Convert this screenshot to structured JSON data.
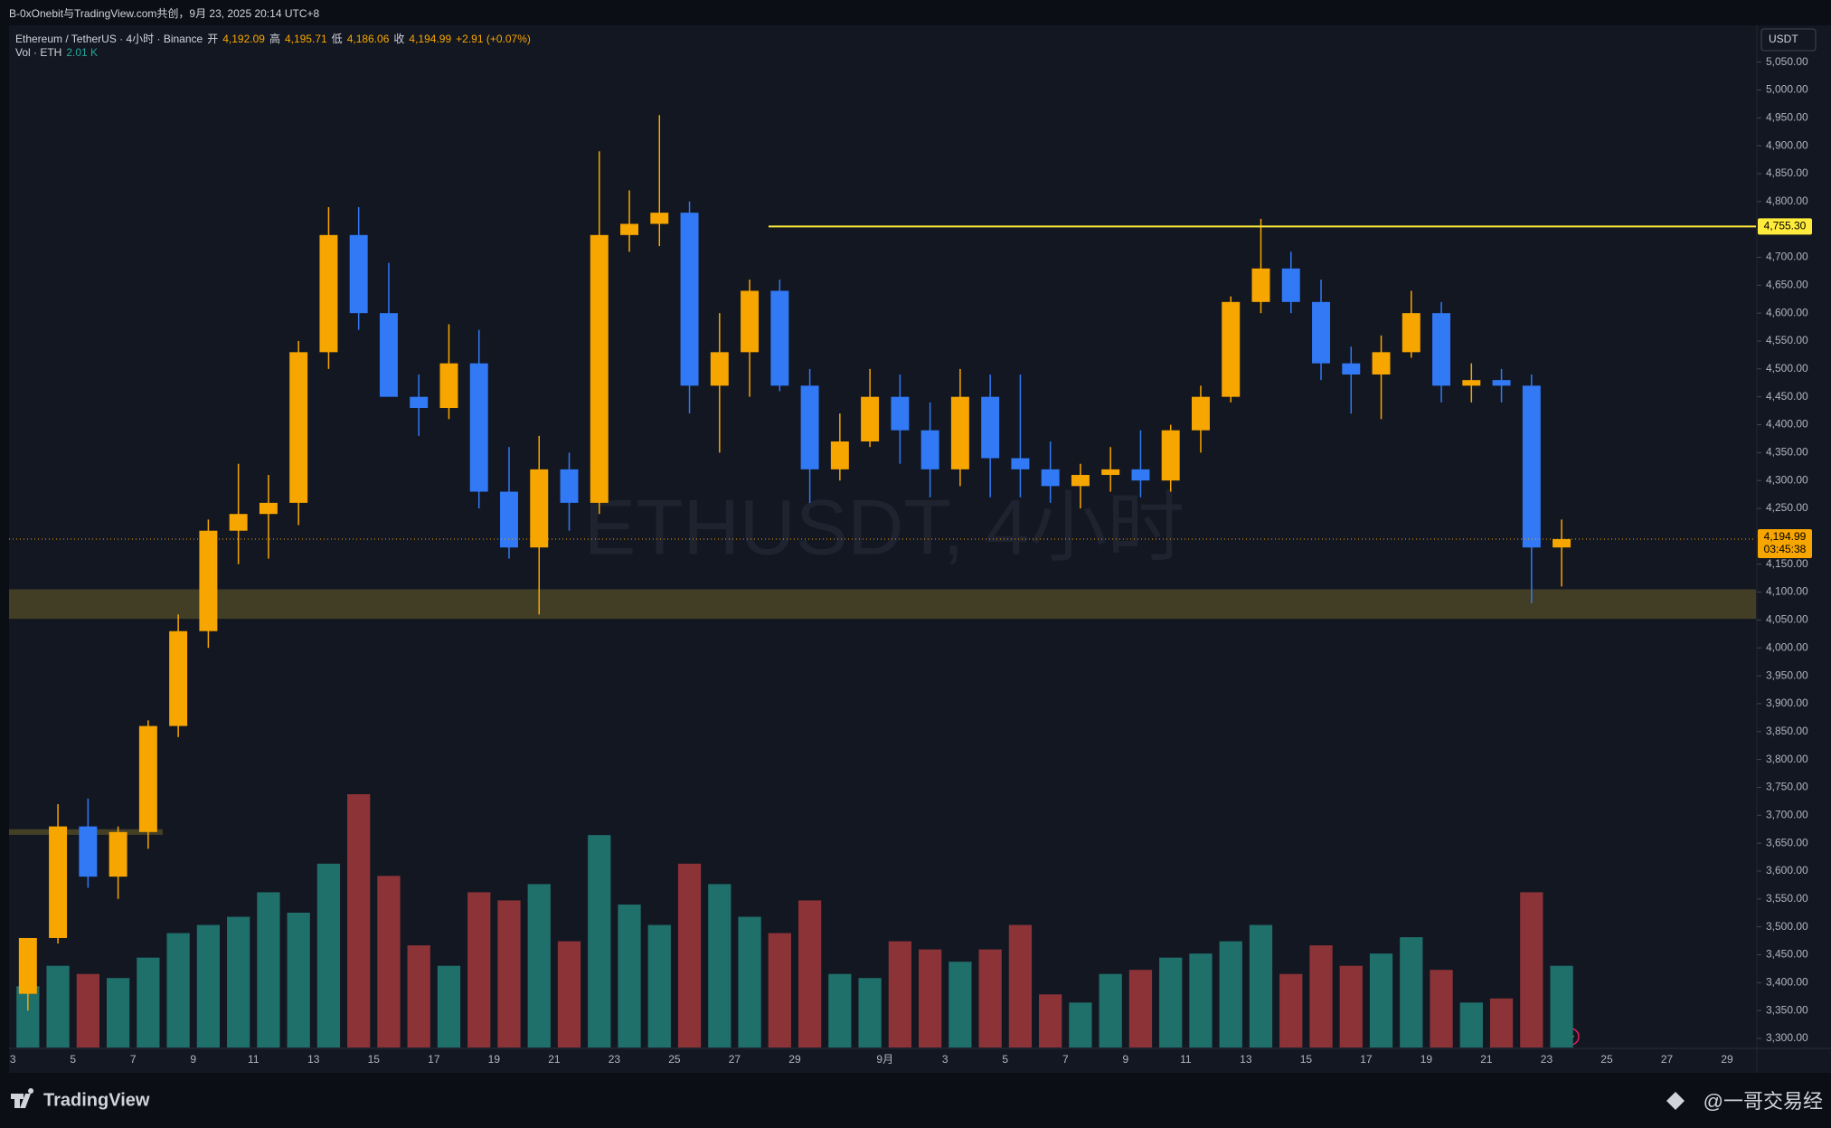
{
  "header": {
    "caption": "B-0xOnebit与TradingView.com共创，9月 23, 2025 20:14 UTC+8"
  },
  "legend": {
    "symbol": "Ethereum / TetherUS · 4小时 · Binance",
    "open_label": "开",
    "open": "4,192.09",
    "high_label": "高",
    "high": "4,195.71",
    "low_label": "低",
    "low": "4,186.06",
    "close_label": "收",
    "close": "4,194.99",
    "change": "+2.91 (+0.07%)",
    "vol_label": "Vol · ETH",
    "vol": "2.01 K"
  },
  "footer": {
    "brand": "TradingView",
    "author": "@一哥交易经"
  },
  "chart_data": {
    "type": "candlestick",
    "watermark": "ETHUSDT, 4小时",
    "y_unit": "USDT",
    "up_color": "#f7a600",
    "down_color": "#3179f5",
    "vol_up_color": "#1f6f6a",
    "vol_down_color": "#8c3337",
    "grid": false,
    "categories": [
      "3",
      null,
      "5",
      null,
      "7",
      null,
      "9",
      null,
      "11",
      null,
      "13",
      null,
      "15",
      null,
      "17",
      null,
      "19",
      null,
      "21",
      null,
      "23",
      null,
      "25",
      null,
      "27",
      null,
      "29",
      null,
      null,
      "9月",
      null,
      "3",
      null,
      "5",
      null,
      "7",
      null,
      "9",
      null,
      "11",
      null,
      "13",
      null,
      "15",
      null,
      "17",
      null,
      "19",
      null,
      "21",
      null,
      "23",
      null,
      "25",
      null,
      "27",
      null,
      "29"
    ],
    "open": [
      3380,
      3480,
      3680,
      3590,
      3670,
      3860,
      4030,
      4210,
      4240,
      4260,
      4530,
      4740,
      4600,
      4450,
      4430,
      4510,
      4280,
      4180,
      4320,
      4260,
      4740,
      4760,
      4780,
      4470,
      4530,
      4640,
      4470,
      4320,
      4370,
      4450,
      4390,
      4320,
      4450,
      4340,
      4320,
      4290,
      4310,
      4320,
      4300,
      4390,
      4450,
      4620,
      4680,
      4620,
      4510,
      4490,
      4530,
      4600,
      4470,
      4480,
      4470,
      4180,
      null,
      null,
      null,
      null,
      null,
      null
    ],
    "high": [
      3480,
      3720,
      3730,
      3680,
      3870,
      4060,
      4230,
      4330,
      4310,
      4550,
      4790,
      4790,
      4690,
      4490,
      4580,
      4570,
      4360,
      4380,
      4350,
      4890,
      4820,
      4955,
      4800,
      4600,
      4660,
      4660,
      4500,
      4420,
      4500,
      4490,
      4440,
      4500,
      4490,
      4490,
      4370,
      4330,
      4360,
      4390,
      4400,
      4470,
      4630,
      4769,
      4710,
      4660,
      4540,
      4560,
      4640,
      4620,
      4510,
      4500,
      4490,
      4230,
      null,
      null,
      null,
      null,
      null,
      null
    ],
    "low": [
      3350,
      3470,
      3570,
      3550,
      3640,
      3840,
      4000,
      4150,
      4160,
      4220,
      4500,
      4570,
      4450,
      4380,
      4410,
      4250,
      4160,
      4060,
      4210,
      4240,
      4710,
      4720,
      4420,
      4350,
      4450,
      4460,
      4260,
      4300,
      4360,
      4330,
      4270,
      4290,
      4270,
      4270,
      4260,
      4250,
      4280,
      4270,
      4280,
      4350,
      4440,
      4600,
      4600,
      4480,
      4420,
      4410,
      4520,
      4440,
      4440,
      4440,
      4080,
      4110,
      null,
      null,
      null,
      null,
      null,
      null
    ],
    "close": [
      3480,
      3680,
      3590,
      3670,
      3860,
      4030,
      4210,
      4240,
      4260,
      4530,
      4740,
      4600,
      4450,
      4430,
      4510,
      4280,
      4180,
      4320,
      4260,
      4740,
      4760,
      4780,
      4470,
      4530,
      4640,
      4470,
      4320,
      4370,
      4450,
      4390,
      4320,
      4450,
      4340,
      4320,
      4290,
      4310,
      4320,
      4300,
      4390,
      4450,
      4620,
      4680,
      4620,
      4510,
      4490,
      4530,
      4600,
      4470,
      4480,
      4470,
      4180,
      4194.99,
      null,
      null,
      null,
      null,
      null,
      null
    ],
    "volume": [
      150,
      200,
      180,
      170,
      220,
      280,
      300,
      320,
      380,
      330,
      450,
      620,
      420,
      250,
      200,
      380,
      360,
      400,
      260,
      520,
      350,
      300,
      450,
      400,
      320,
      280,
      360,
      180,
      170,
      260,
      240,
      210,
      240,
      300,
      130,
      110,
      180,
      190,
      220,
      230,
      260,
      300,
      180,
      250,
      200,
      230,
      270,
      190,
      110,
      120,
      380,
      200,
      null,
      null,
      null,
      null,
      null,
      null
    ],
    "ylim": [
      3250,
      5100
    ],
    "yticks": [
      {
        "value": 3300,
        "label": "3,300.00"
      },
      {
        "value": 3350,
        "label": "3,350.00"
      },
      {
        "value": 3400,
        "label": "3,400.00"
      },
      {
        "value": 3450,
        "label": "3,450.00"
      },
      {
        "value": 3500,
        "label": "3,500.00"
      },
      {
        "value": 3550,
        "label": "3,550.00"
      },
      {
        "value": 3600,
        "label": "3,600.00"
      },
      {
        "value": 3650,
        "label": "3,650.00"
      },
      {
        "value": 3700,
        "label": "3,700.00"
      },
      {
        "value": 3750,
        "label": "3,750.00"
      },
      {
        "value": 3800,
        "label": "3,800.00"
      },
      {
        "value": 3850,
        "label": "3,850.00"
      },
      {
        "value": 3900,
        "label": "3,900.00"
      },
      {
        "value": 3950,
        "label": "3,950.00"
      },
      {
        "value": 4000,
        "label": "4,000.00"
      },
      {
        "value": 4050,
        "label": "4,050.00"
      },
      {
        "value": 4100,
        "label": "4,100.00"
      },
      {
        "value": 4150,
        "label": "4,150.00"
      },
      {
        "value": 4200,
        "label": "4,200.00"
      },
      {
        "value": 4250,
        "label": "4,250.00"
      },
      {
        "value": 4300,
        "label": "4,300.00"
      },
      {
        "value": 4350,
        "label": "4,350.00"
      },
      {
        "value": 4400,
        "label": "4,400.00"
      },
      {
        "value": 4450,
        "label": "4,450.00"
      },
      {
        "value": 4500,
        "label": "4,500.00"
      },
      {
        "value": 4550,
        "label": "4,550.00"
      },
      {
        "value": 4600,
        "label": "4,600.00"
      },
      {
        "value": 4650,
        "label": "4,650.00"
      },
      {
        "value": 4700,
        "label": "4,700.00"
      },
      {
        "value": 4750,
        "label": "4,750.00"
      },
      {
        "value": 4800,
        "label": "4,800.00"
      },
      {
        "value": 4850,
        "label": "4,850.00"
      },
      {
        "value": 4900,
        "label": "4,900.00"
      },
      {
        "value": 4950,
        "label": "4,950.00"
      },
      {
        "value": 5000,
        "label": "5,000.00"
      },
      {
        "value": 5050,
        "label": "5,050.00"
      }
    ],
    "resistance": {
      "value": 4755.3,
      "label": "4,755.30",
      "color": "#ffeb3b"
    },
    "last_price": {
      "value": 4194.99,
      "label": "4,194.99",
      "countdown": "03:45:38",
      "color": "#f7a600"
    },
    "zones": [
      {
        "low": 4052,
        "high": 4105,
        "color": "#4a4526"
      },
      {
        "low": 3665,
        "high": 3675,
        "color": "#4a4526"
      }
    ]
  }
}
